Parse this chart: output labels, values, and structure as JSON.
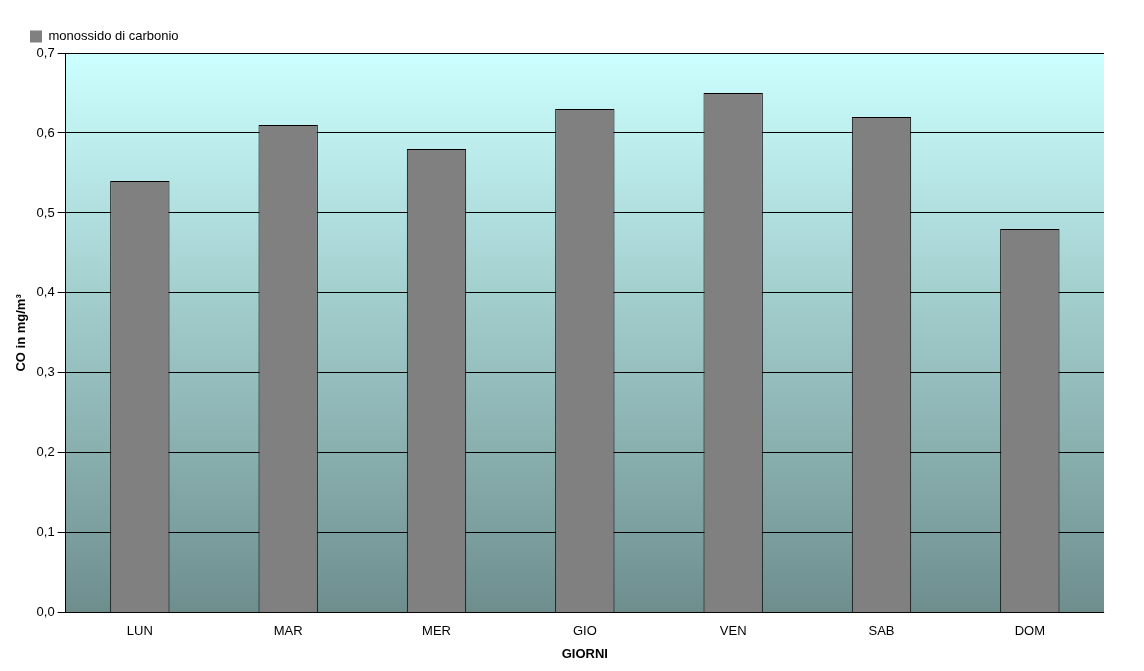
{
  "chart_data": {
    "type": "bar",
    "xlabel": "GIORNI",
    "ylabel": "CO in mg/m³",
    "categories": [
      "LUN",
      "MAR",
      "MER",
      "GIO",
      "VEN",
      "SAB",
      "DOM"
    ],
    "series": [
      {
        "name": "monossido di carbonio",
        "color": "#808080",
        "values": [
          0.54,
          0.61,
          0.58,
          0.63,
          0.65,
          0.62,
          0.48
        ]
      }
    ],
    "ylim": [
      0,
      0.7
    ],
    "yticks": [
      {
        "value": 0,
        "label": "0,0"
      },
      {
        "value": 0.1,
        "label": "0,1"
      },
      {
        "value": 0.2,
        "label": "0,2"
      },
      {
        "value": 0.3,
        "label": "0,3"
      },
      {
        "value": 0.4,
        "label": "0,4"
      },
      {
        "value": 0.5,
        "label": "0,5"
      },
      {
        "value": 0.6,
        "label": "0,6"
      },
      {
        "value": 0.7,
        "label": "0,7"
      }
    ],
    "grid": "y",
    "legend": "top left"
  }
}
